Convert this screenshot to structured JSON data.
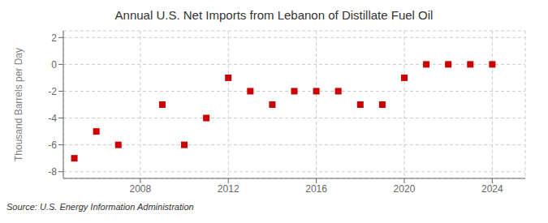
{
  "chart_data": {
    "type": "scatter",
    "title": "Annual U.S. Net Imports from Lebanon of Distillate Fuel Oil",
    "ylabel": "Thousand Barrels per Day",
    "annotations": [
      "Source: U.S. Energy Information Administration"
    ],
    "x": [
      2005,
      2006,
      2007,
      2009,
      2010,
      2011,
      2012,
      2013,
      2014,
      2015,
      2016,
      2017,
      2018,
      2019,
      2020,
      2021,
      2022,
      2023,
      2024
    ],
    "values": [
      -7.0,
      -5.0,
      -6.0,
      -3.0,
      -6.0,
      -4.0,
      -1.0,
      -2.0,
      -3.0,
      -2.0,
      -2.0,
      -2.0,
      -3.0,
      -3.0,
      -1.0,
      0.0,
      0.0,
      0.0,
      0.0
    ],
    "xlim": [
      2004.5,
      2025.5
    ],
    "ylim": [
      -8.5,
      2.5
    ],
    "xticks": [
      2008,
      2012,
      2016,
      2020,
      2024
    ],
    "yticks": [
      -8,
      -6,
      -4,
      -2,
      0,
      2
    ],
    "color": "#cc0000",
    "marker": "square",
    "grid": true
  }
}
